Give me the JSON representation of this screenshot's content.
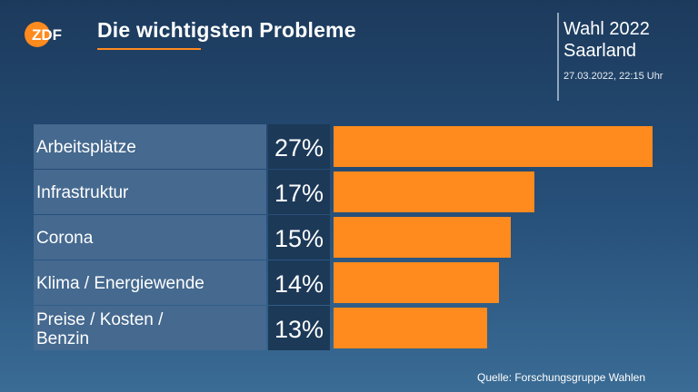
{
  "header": {
    "title": "Die wichtigsten Probleme",
    "election": "Wahl 2022",
    "region": "Saarland",
    "timestamp": "27.03.2022, 22:15 Uhr",
    "logo_text": "ZDF"
  },
  "colors": {
    "bar": "#ff8a1e",
    "label_bg": "#45698f",
    "value_bg": "#1c3958",
    "logo": "#ff8a1e"
  },
  "chart_data": {
    "type": "bar",
    "orientation": "horizontal",
    "title": "Die wichtigsten Probleme",
    "categories": [
      [
        "Arbeitsplätze"
      ],
      [
        "Infrastruktur"
      ],
      [
        "Corona"
      ],
      [
        "Klima / Energiewende"
      ],
      [
        "Preise / Kosten /",
        "Benzin"
      ]
    ],
    "values": [
      27,
      17,
      15,
      14,
      13
    ],
    "value_labels": [
      "27%",
      "17%",
      "15%",
      "14%",
      "13%"
    ],
    "unit": "%",
    "xlim": [
      0,
      27
    ]
  },
  "footer": {
    "source": "Quelle: Forschungsgruppe Wahlen"
  }
}
